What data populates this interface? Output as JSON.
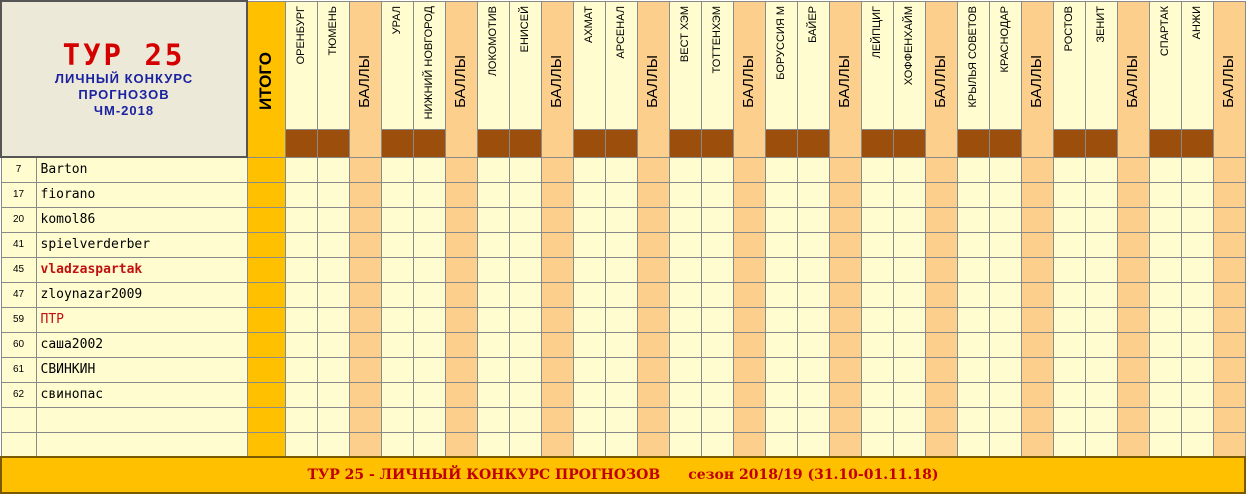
{
  "header": {
    "tour_title": "ТУР 25",
    "subtitle_lines": [
      "ЛИЧНЫЙ КОНКУРС",
      "ПРОГНОЗОВ",
      "ЧМ-2018"
    ],
    "itogo_label": "ИТОГО",
    "points_label": "БАЛЛЫ"
  },
  "matches": [
    {
      "home": "ОРЕНБУРГ",
      "away": "ТЮМЕНЬ"
    },
    {
      "home": "УРАЛ",
      "away": "НИЖНИЙ НОВГОРОД"
    },
    {
      "home": "ЛОКОМОТИВ",
      "away": "ЕНИСЕЙ"
    },
    {
      "home": "АХМАТ",
      "away": "АРСЕНАЛ"
    },
    {
      "home": "ВЕСТ ХЭМ",
      "away": "ТОТТЕНХЭМ"
    },
    {
      "home": "БОРУССИЯ М",
      "away": "БАЙЕР"
    },
    {
      "home": "ЛЕЙПЦИГ",
      "away": "ХОФФЕНХАЙМ"
    },
    {
      "home": "КРЫЛЬЯ СОВЕТОВ",
      "away": "КРАСНОДАР"
    },
    {
      "home": "РОСТОВ",
      "away": "ЗЕНИТ"
    },
    {
      "home": "СПАРТАК",
      "away": "АНЖИ"
    }
  ],
  "participants": [
    {
      "num": "7",
      "name": "Barton"
    },
    {
      "num": "17",
      "name": "fiorano"
    },
    {
      "num": "20",
      "name": "komol86"
    },
    {
      "num": "41",
      "name": "spielverderber"
    },
    {
      "num": "45",
      "name": "vladzaspartak"
    },
    {
      "num": "47",
      "name": "zloynazar2009"
    },
    {
      "num": "59",
      "name": "ПТР"
    },
    {
      "num": "60",
      "name": "саша2002"
    },
    {
      "num": "61",
      "name": "СВИНКИН"
    },
    {
      "num": "62",
      "name": "свинопас"
    },
    {
      "num": "",
      "name": ""
    },
    {
      "num": "",
      "name": ""
    }
  ],
  "footer": {
    "left": "ТУР 25 - ЛИЧНЫЙ КОНКУРС ПРОГНОЗОВ",
    "right": "сезон 2018/19  (31.10-01.11.18)"
  },
  "colors": {
    "itogo": "#ffc000",
    "team_column": "#fffdd0",
    "points_column": "#fcd08c",
    "brown_band": "#9c4f0c",
    "title_red": "#d40000",
    "subtitle_blue": "#1a22a0"
  }
}
